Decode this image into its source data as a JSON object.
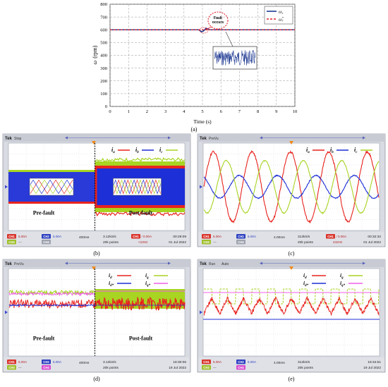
{
  "chart_data": [
    {
      "id": "a",
      "type": "line",
      "caption": "(a)",
      "xlabel": "Time (s)",
      "ylabel_symbol": "ω",
      "ylabel_unit": "(rpm)",
      "xlim": [
        0,
        10
      ],
      "ylim": [
        0,
        800
      ],
      "xticks": [
        0,
        1,
        2,
        3,
        4,
        5,
        6,
        7,
        8,
        9,
        10
      ],
      "yticks": [
        0,
        100,
        200,
        300,
        400,
        500,
        600,
        700,
        800
      ],
      "grid": true,
      "legend_position": "top-right",
      "series": [
        {
          "name": "ωr",
          "style": "solid",
          "color": "#1f3a93",
          "x": [
            0,
            4.8,
            4.95,
            5.05,
            5.2,
            5.4,
            10
          ],
          "values": [
            600,
            600,
            585,
            590,
            612,
            600,
            600
          ]
        },
        {
          "name": "ω*r",
          "style": "dashed",
          "color": "#e0252b",
          "x": [
            0,
            10
          ],
          "values": [
            600,
            600
          ]
        }
      ],
      "annotation": {
        "line1": "Fault",
        "line2": "occurs"
      }
    },
    {
      "id": "b",
      "type": "line",
      "caption": "(b)",
      "header": {
        "brand": "Tek",
        "status": "Stop"
      },
      "legend": [
        "ia",
        "ib",
        "ic"
      ],
      "legend_colors": [
        "#e8231e",
        "#1d2fd6",
        "#a8d422"
      ],
      "labels": {
        "left": "Pre-fault",
        "right": "Post-fault"
      },
      "footer": {
        "ch1": "CH1",
        "ch1_val": "5.00A",
        "ch2": "CH2",
        "ch2_val": "5.00A",
        "ch3": "CH3",
        "ch4": "CH4",
        "timebase": "400ms",
        "rate": "3.12kS/s",
        "points": "20k points",
        "trig": "CH1",
        "trig_val": "0.00A",
        "freq": "<10Hz",
        "time": "00:29:09",
        "date": "01 Jul 2022"
      }
    },
    {
      "id": "c",
      "type": "line",
      "caption": "(c)",
      "header": {
        "brand": "Tek",
        "status": "PreVu"
      },
      "legend": [
        "ia",
        "ib",
        "ic"
      ],
      "legend_colors": [
        "#e8231e",
        "#1d2fd6",
        "#a8d422"
      ],
      "footer": {
        "ch1": "CH1",
        "ch1_val": "5.00A",
        "ch2": "CH2",
        "ch2_val": "5.00A",
        "ch3": "CH3",
        "ch4": "CH4",
        "timebase": "4.00ms",
        "rate": "312kS/s",
        "points": "20k points",
        "trig": "CH1",
        "trig_val": "0.00A",
        "freq": "442Hz",
        "time": "00:32:32",
        "date": "01 Jul 2022"
      }
    },
    {
      "id": "d",
      "type": "line",
      "caption": "(d)",
      "header": {
        "brand": "Tek",
        "status": "PreVu"
      },
      "legend": [
        "id",
        "iq",
        "id*",
        "iq*"
      ],
      "legend_colors": [
        "#e8231e",
        "#a8d422",
        "#1d2fd6",
        "#ef5fe8"
      ],
      "labels": {
        "left": "Pre-fault",
        "right": "Post-fault"
      },
      "footer": {
        "ch1": "CH1",
        "ch1_val": "5.00A",
        "ch2": "CH2",
        "ch2_val": "5.00A",
        "ch3": "CH3",
        "ch4": "CH4",
        "timebase": "400ms",
        "rate": "3.12kS/s",
        "points": "20k points",
        "time": "18:30:06",
        "date": "19 Jul 2022"
      }
    },
    {
      "id": "e",
      "type": "line",
      "caption": "(e)",
      "header": {
        "brand": "Tek",
        "status": "Run",
        "mode": "Auto"
      },
      "legend": [
        "id",
        "iq",
        "id*",
        "iq*"
      ],
      "legend_colors": [
        "#e8231e",
        "#a8d422",
        "#1d2fd6",
        "#ef5fe8"
      ],
      "footer": {
        "ch1": "CH1",
        "ch1_val": "5.00A",
        "ch2": "CH2",
        "ch2_val": "5.00A",
        "ch3": "CH3",
        "ch4": "CH4",
        "timebase": "4.00ms",
        "rate": "312kS/s",
        "points": "20k points",
        "time": "18:34:51",
        "date": "19 Jul 2022"
      }
    }
  ],
  "colors": {
    "red": "#e8231e",
    "blue": "#1d2fd6",
    "green": "#a8d422",
    "pink": "#ef5fe8",
    "orange": "#f08a1c"
  }
}
